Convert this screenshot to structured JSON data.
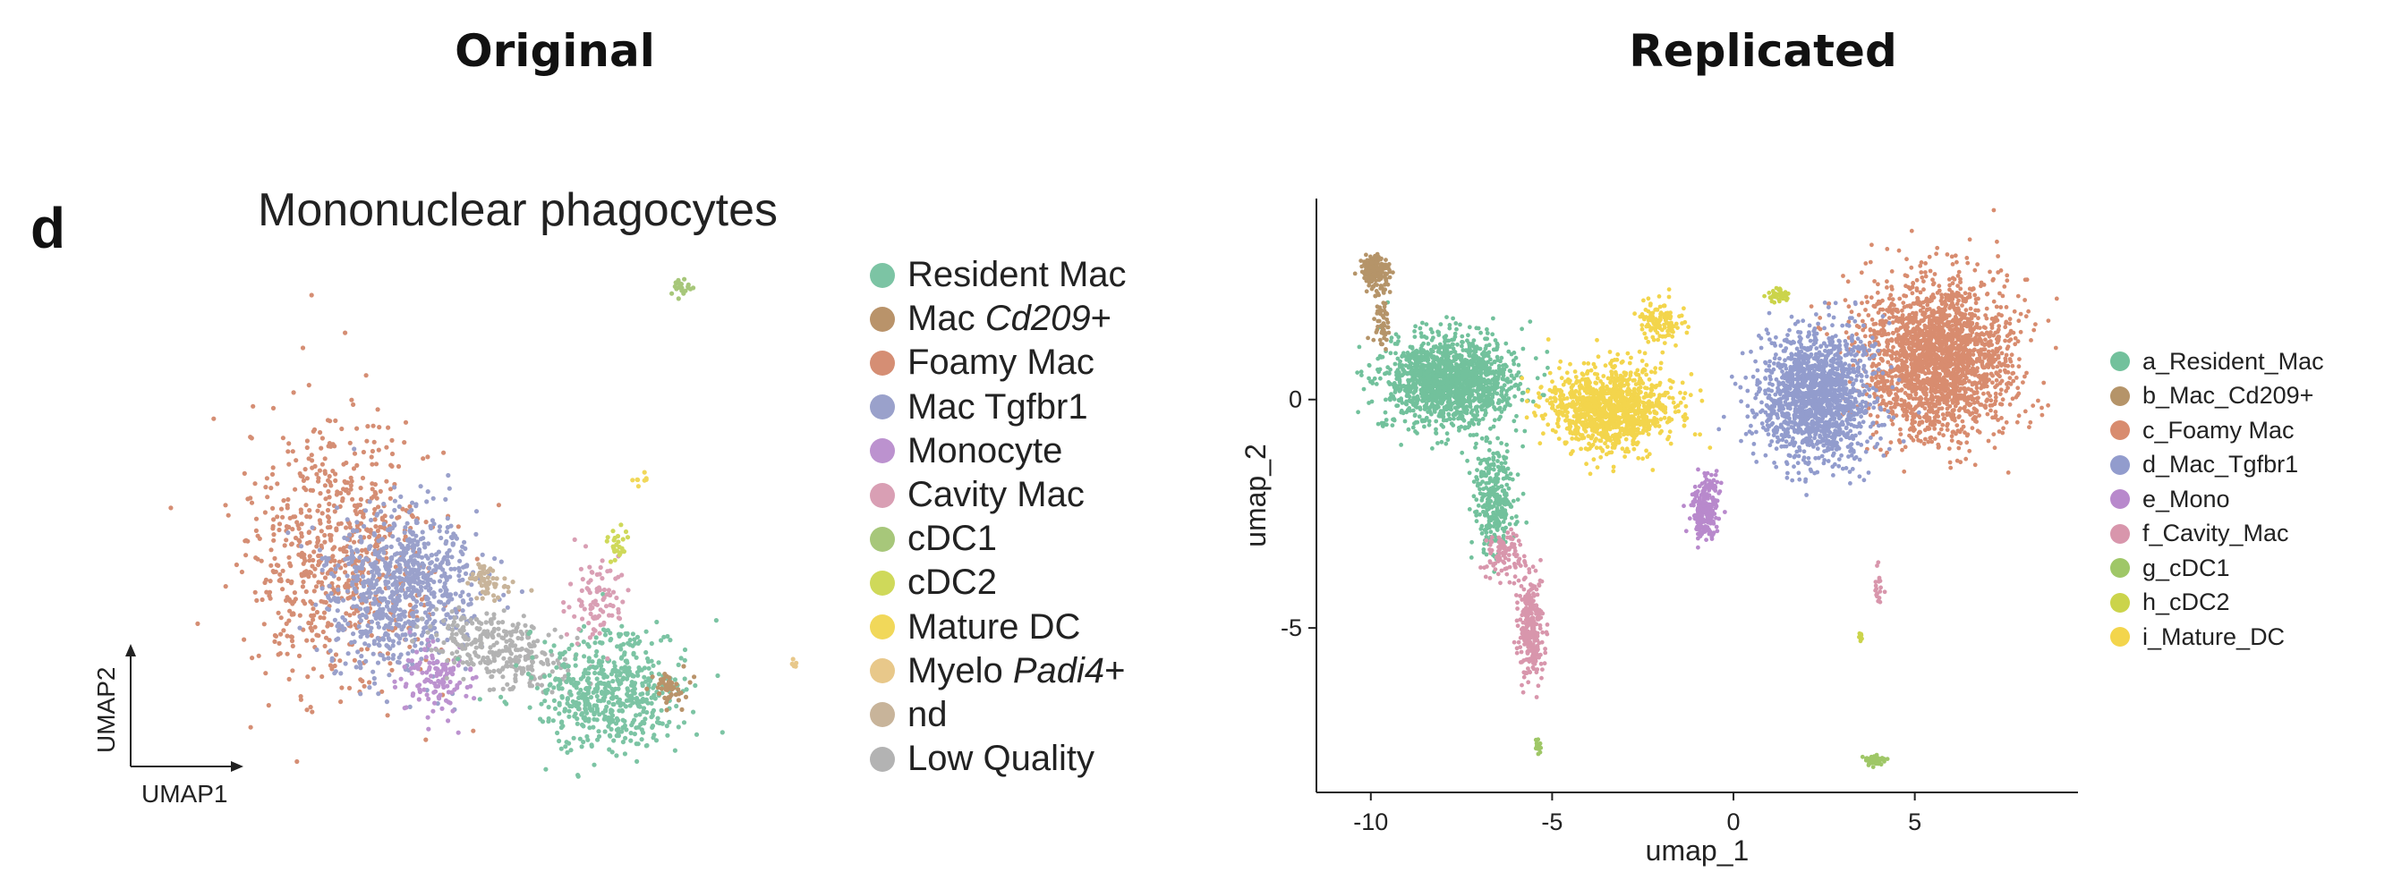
{
  "headings": {
    "left": "Original",
    "right": "Replicated"
  },
  "chart_data": [
    {
      "type": "scatter",
      "panel_label": "d",
      "title": "Mononuclear phagocytes",
      "xlabel": "UMAP1",
      "ylabel": "UMAP2",
      "axes_style": "arrows-only",
      "legend_placement": "right",
      "legend": [
        {
          "label": "Resident Mac",
          "color": "#7cc4a4"
        },
        {
          "label": "Mac Cd209+",
          "color": "#b9936a",
          "italic_part": "Cd209"
        },
        {
          "label": "Foamy Mac",
          "color": "#d58e74"
        },
        {
          "label": "Mac Tgfbr1",
          "color": "#9aa1cb"
        },
        {
          "label": "Monocyte",
          "color": "#bc92cf"
        },
        {
          "label": "Cavity Mac",
          "color": "#d99fb4"
        },
        {
          "label": "cDC1",
          "color": "#a7c77a"
        },
        {
          "label": "cDC2",
          "color": "#cfd95a"
        },
        {
          "label": "Mature DC",
          "color": "#f1d85a"
        },
        {
          "label": "Myelo Padi4+",
          "color": "#e8c88a",
          "italic_part": "Padi4"
        },
        {
          "label": "nd",
          "color": "#c8b49a"
        },
        {
          "label": "Low Quality",
          "color": "#b3b3b3"
        }
      ]
    },
    {
      "type": "scatter",
      "xlabel": "umap_1",
      "ylabel": "umap_2",
      "xlim": [
        -11.5,
        9.5
      ],
      "ylim": [
        -8.6,
        4.4
      ],
      "xticks": [
        -10,
        -5,
        0,
        5
      ],
      "yticks": [
        -5,
        0
      ],
      "grid": false,
      "legend_placement": "right",
      "series": [
        {
          "name": "a_Resident_Mac",
          "color": "#72c19c"
        },
        {
          "name": "b_Mac_Cd209+",
          "color": "#b59469"
        },
        {
          "name": "c_Foamy Mac",
          "color": "#d88c6f"
        },
        {
          "name": "d_Mac_Tgfbr1",
          "color": "#929ccd"
        },
        {
          "name": "e_Mono",
          "color": "#b889cc"
        },
        {
          "name": "f_Cavity_Mac",
          "color": "#d896ac"
        },
        {
          "name": "g_cDC1",
          "color": "#9fc767"
        },
        {
          "name": "h_cDC2",
          "color": "#cbd44b"
        },
        {
          "name": "i_Mature_DC",
          "color": "#f3d54c"
        }
      ],
      "clusters": [
        {
          "series": "a_Resident_Mac",
          "points": 1500,
          "center": [
            -7.8,
            0.4
          ],
          "spread": [
            1.6,
            0.9
          ],
          "extra": [
            {
              "center": [
                -6.6,
                -2.2
              ],
              "spread": [
                0.5,
                1.0
              ],
              "points": 300
            }
          ]
        },
        {
          "series": "b_Mac_Cd209+",
          "points": 170,
          "center": [
            -9.9,
            2.8
          ],
          "spread": [
            0.35,
            0.35
          ],
          "extra": [
            {
              "center": [
                -9.7,
                1.7
              ],
              "spread": [
                0.2,
                0.6
              ],
              "points": 60
            }
          ]
        },
        {
          "series": "c_Foamy Mac",
          "points": 2100,
          "center": [
            5.6,
            0.9
          ],
          "spread": [
            1.9,
            1.6
          ]
        },
        {
          "series": "d_Mac_Tgfbr1",
          "points": 1500,
          "center": [
            2.3,
            0.1
          ],
          "spread": [
            1.4,
            1.3
          ]
        },
        {
          "series": "e_Mono",
          "points": 240,
          "center": [
            -0.8,
            -2.4
          ],
          "spread": [
            0.3,
            0.6
          ]
        },
        {
          "series": "f_Cavity_Mac",
          "points": 280,
          "center": [
            -5.6,
            -5.0
          ],
          "spread": [
            0.3,
            1.0
          ],
          "extra": [
            {
              "center": [
                -6.3,
                -3.4
              ],
              "spread": [
                0.5,
                0.5
              ],
              "points": 100
            },
            {
              "center": [
                4.0,
                -4.2
              ],
              "spread": [
                0.1,
                0.4
              ],
              "points": 20
            }
          ]
        },
        {
          "series": "g_cDC1",
          "points": 70,
          "center": [
            3.9,
            -7.9
          ],
          "spread": [
            0.25,
            0.12
          ],
          "extra": [
            {
              "center": [
                -5.4,
                -7.6
              ],
              "spread": [
                0.1,
                0.15
              ],
              "points": 20
            }
          ]
        },
        {
          "series": "h_cDC2",
          "points": 40,
          "center": [
            1.2,
            2.3
          ],
          "spread": [
            0.3,
            0.12
          ],
          "extra": [
            {
              "center": [
                3.5,
                -5.2
              ],
              "spread": [
                0.05,
                0.1
              ],
              "points": 8
            }
          ]
        },
        {
          "series": "i_Mature_DC",
          "points": 1100,
          "center": [
            -3.4,
            -0.2
          ],
          "spread": [
            1.6,
            0.8
          ],
          "extra": [
            {
              "center": [
                -2.0,
                1.7
              ],
              "spread": [
                0.6,
                0.4
              ],
              "points": 120
            }
          ]
        }
      ]
    }
  ]
}
